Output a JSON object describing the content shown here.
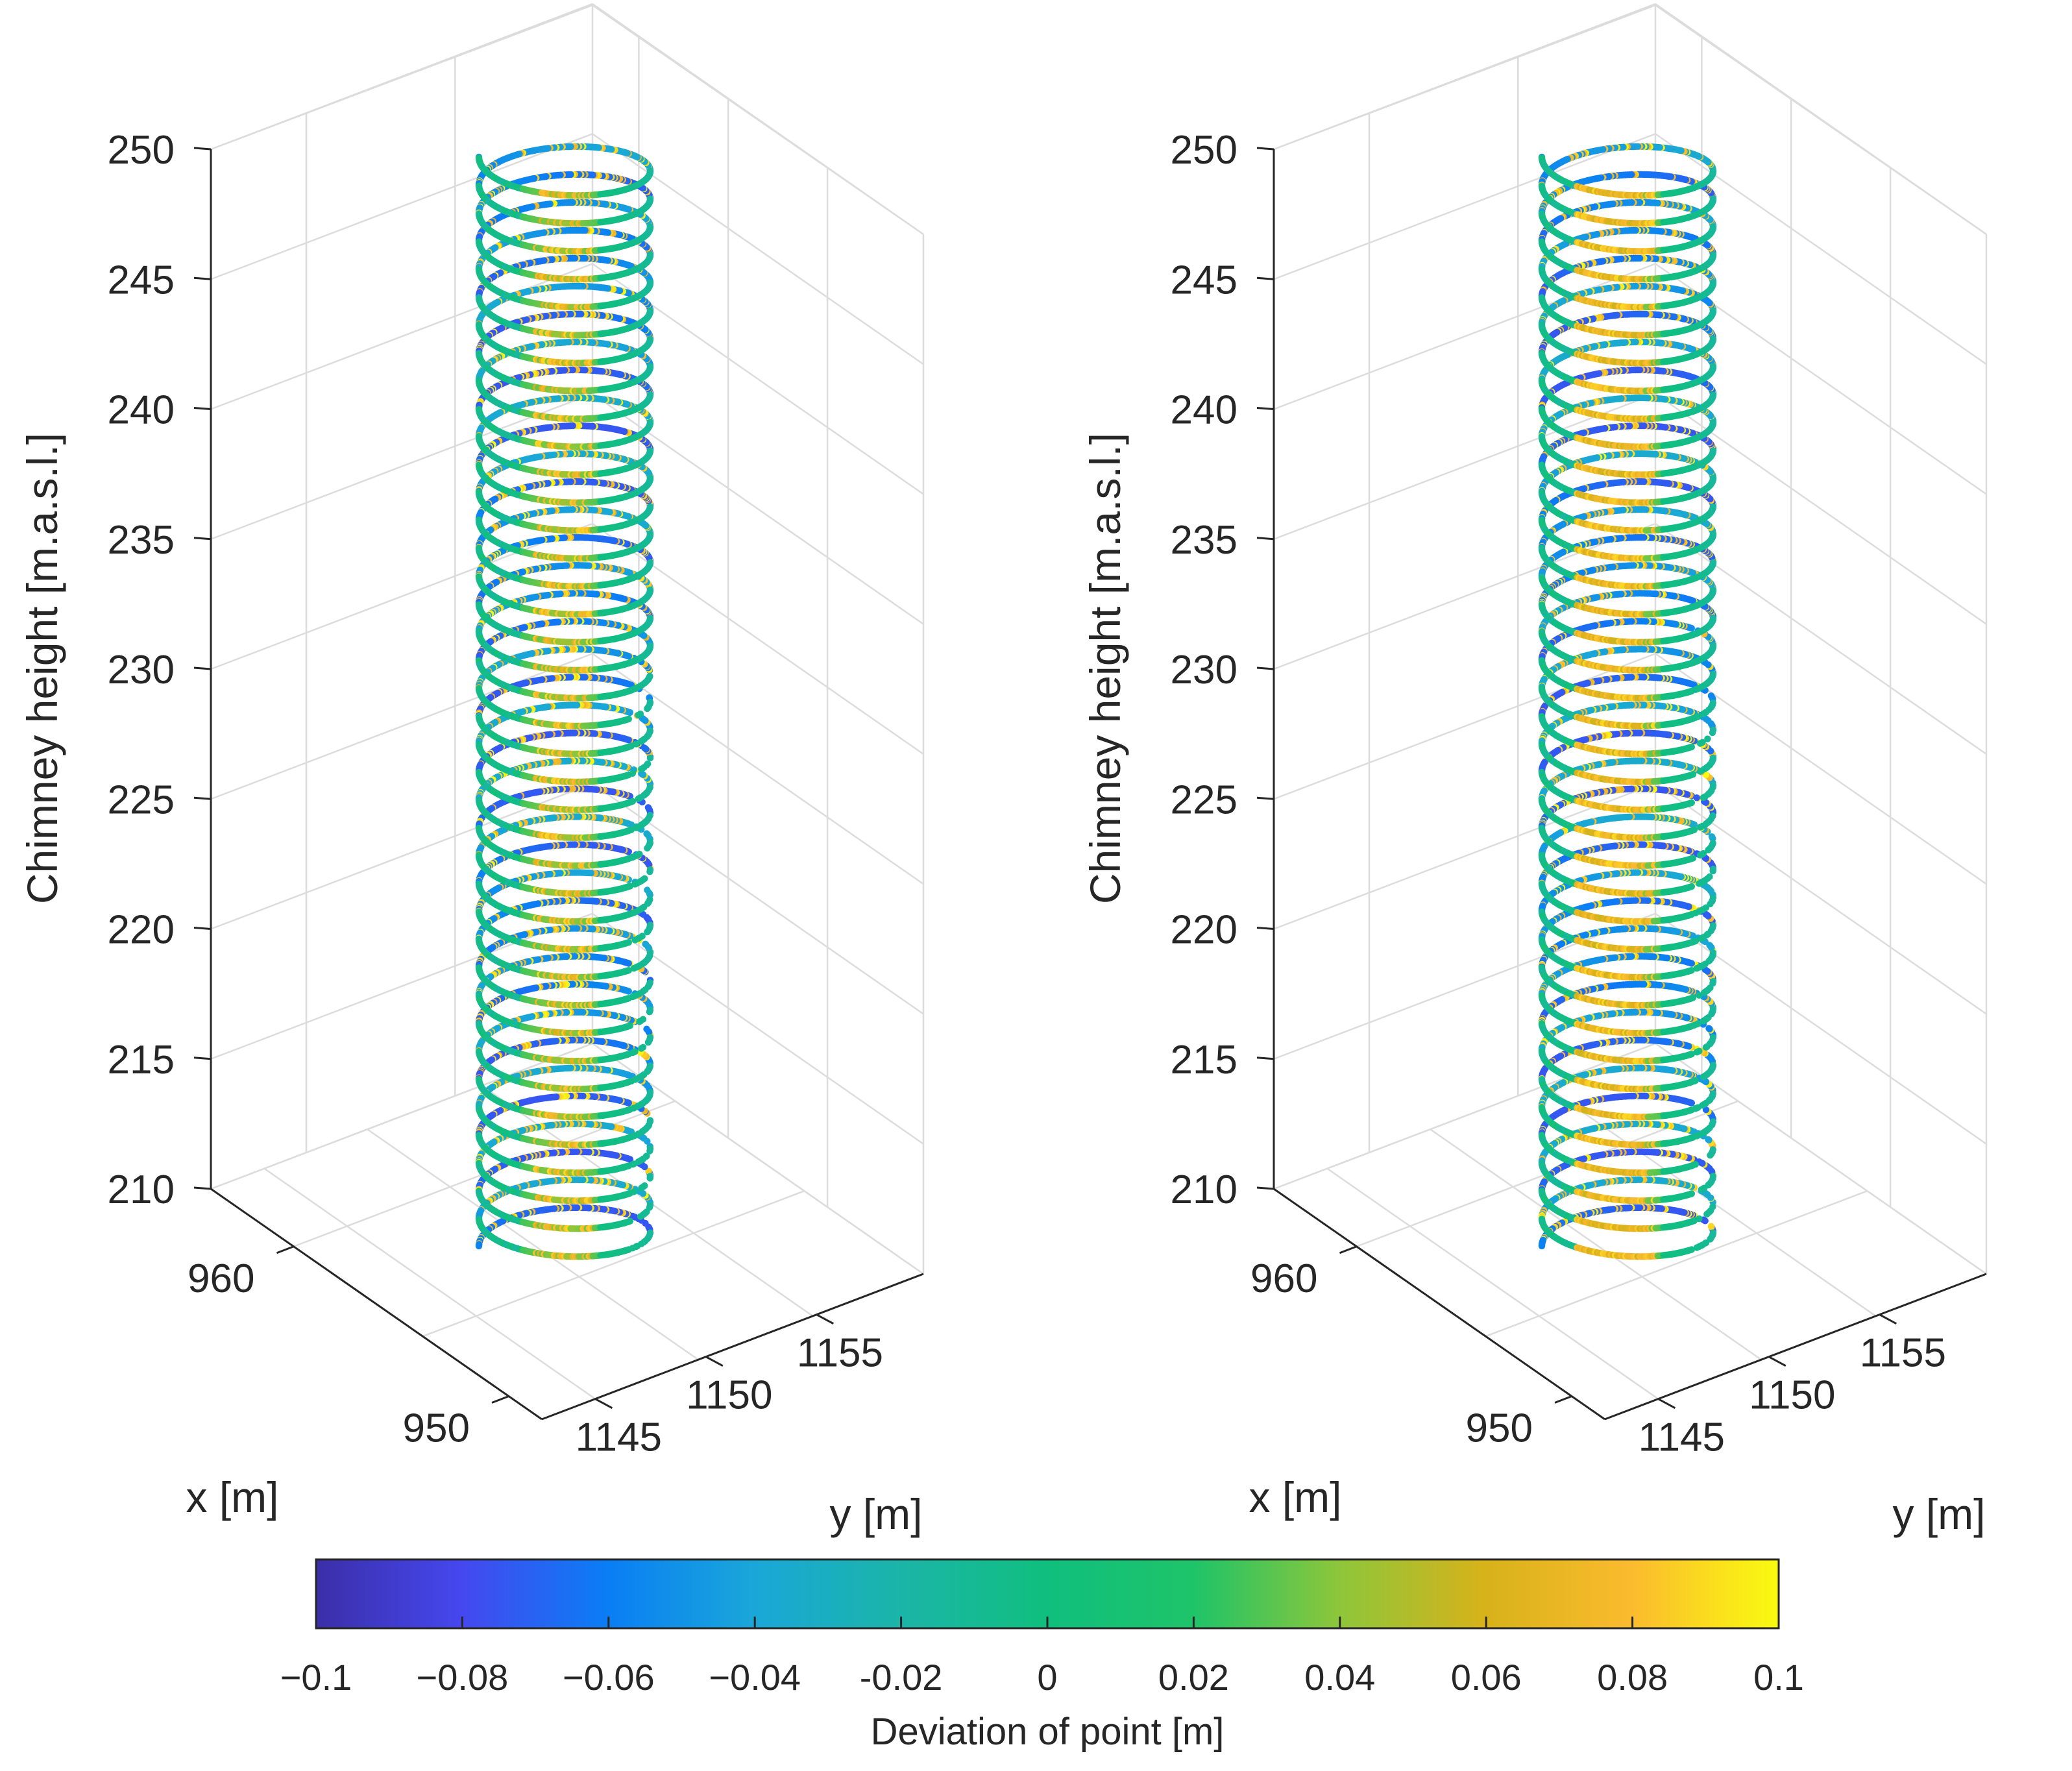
{
  "chart_data": [
    {
      "type": "scatter",
      "subtype": "scatter3d-helix",
      "title": "",
      "zlabel": "Chimney height [m.a.s.l.]",
      "xlabel": "x [m]",
      "ylabel": "y [m]",
      "z_ticks": [
        210,
        215,
        220,
        225,
        230,
        235,
        240,
        245,
        250
      ],
      "x_ticks": [
        950,
        960
      ],
      "y_ticks": [
        1145,
        1150,
        1155
      ],
      "zlim": [
        210,
        250
      ],
      "grid": true,
      "helix": {
        "turns": 39,
        "z_top": 249.7,
        "z_bottom": 207.8,
        "center_x_m": 955,
        "center_y_m": 1150,
        "radius_m": 3.4
      }
    },
    {
      "type": "scatter",
      "subtype": "scatter3d-helix",
      "title": "",
      "zlabel": "Chimney height [m.a.s.l.]",
      "xlabel": "x [m]",
      "ylabel": "y [m]",
      "z_ticks": [
        210,
        215,
        220,
        225,
        230,
        235,
        240,
        245,
        250
      ],
      "x_ticks": [
        950,
        960
      ],
      "y_ticks": [
        1145,
        1150,
        1155
      ],
      "zlim": [
        210,
        250
      ],
      "grid": true,
      "helix": {
        "turns": 39,
        "z_top": 249.7,
        "z_bottom": 207.8,
        "center_x_m": 955,
        "center_y_m": 1150,
        "radius_m": 3.4
      }
    }
  ],
  "colorbar": {
    "label": "Deviation of point [m]",
    "range": [
      -0.1,
      0.1
    ],
    "ticks": [
      -0.1,
      -0.08,
      -0.06,
      -0.04,
      -0.02,
      0,
      0.02,
      0.04,
      0.06,
      0.08,
      0.1
    ],
    "tick_labels": [
      "−0.1",
      "−0.08",
      "−0.06",
      "−0.04",
      "-0.02",
      "0",
      "0.02",
      "0.04",
      "0.06",
      "0.08",
      "0.1"
    ],
    "colormap": [
      "#3b2ea8",
      "#4548ef",
      "#0a7ef5",
      "#1aa7d8",
      "#1bb5a8",
      "#10bf7e",
      "#1ec468",
      "#8ec63a",
      "#d8b21a",
      "#fbbb2e",
      "#f9fb10"
    ]
  },
  "colors": {
    "axis": "#262626",
    "grid": "#dcdcdc"
  }
}
